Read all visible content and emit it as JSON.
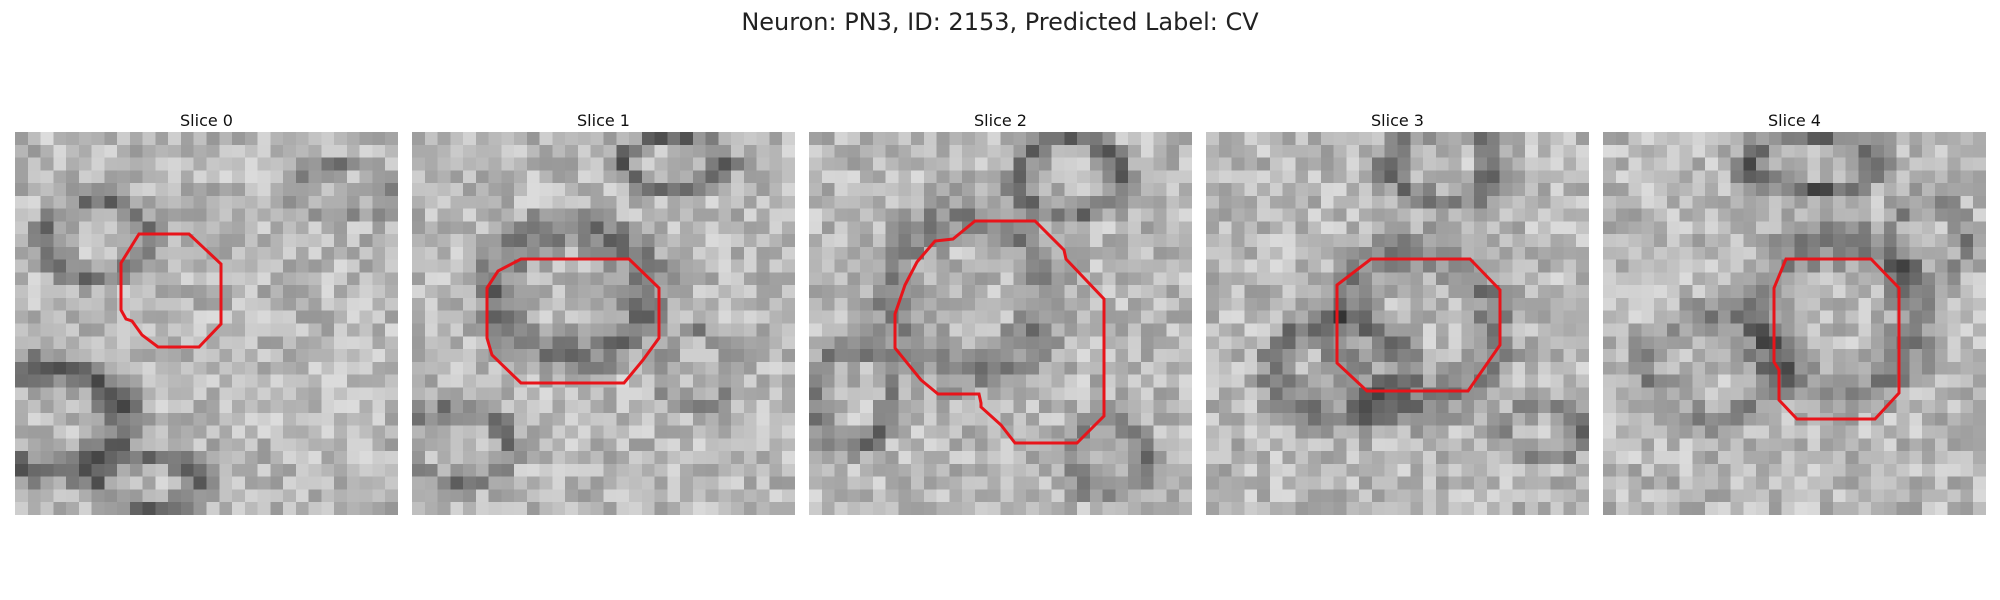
{
  "figure": {
    "title": "Neuron: PN3, ID: 2153, Predicted Label: CV",
    "contour_color": "#e8141a",
    "panels": [
      {
        "title": "Slice 0"
      },
      {
        "title": "Slice 1"
      },
      {
        "title": "Slice 2"
      },
      {
        "title": "Slice 3"
      },
      {
        "title": "Slice 4"
      }
    ]
  }
}
